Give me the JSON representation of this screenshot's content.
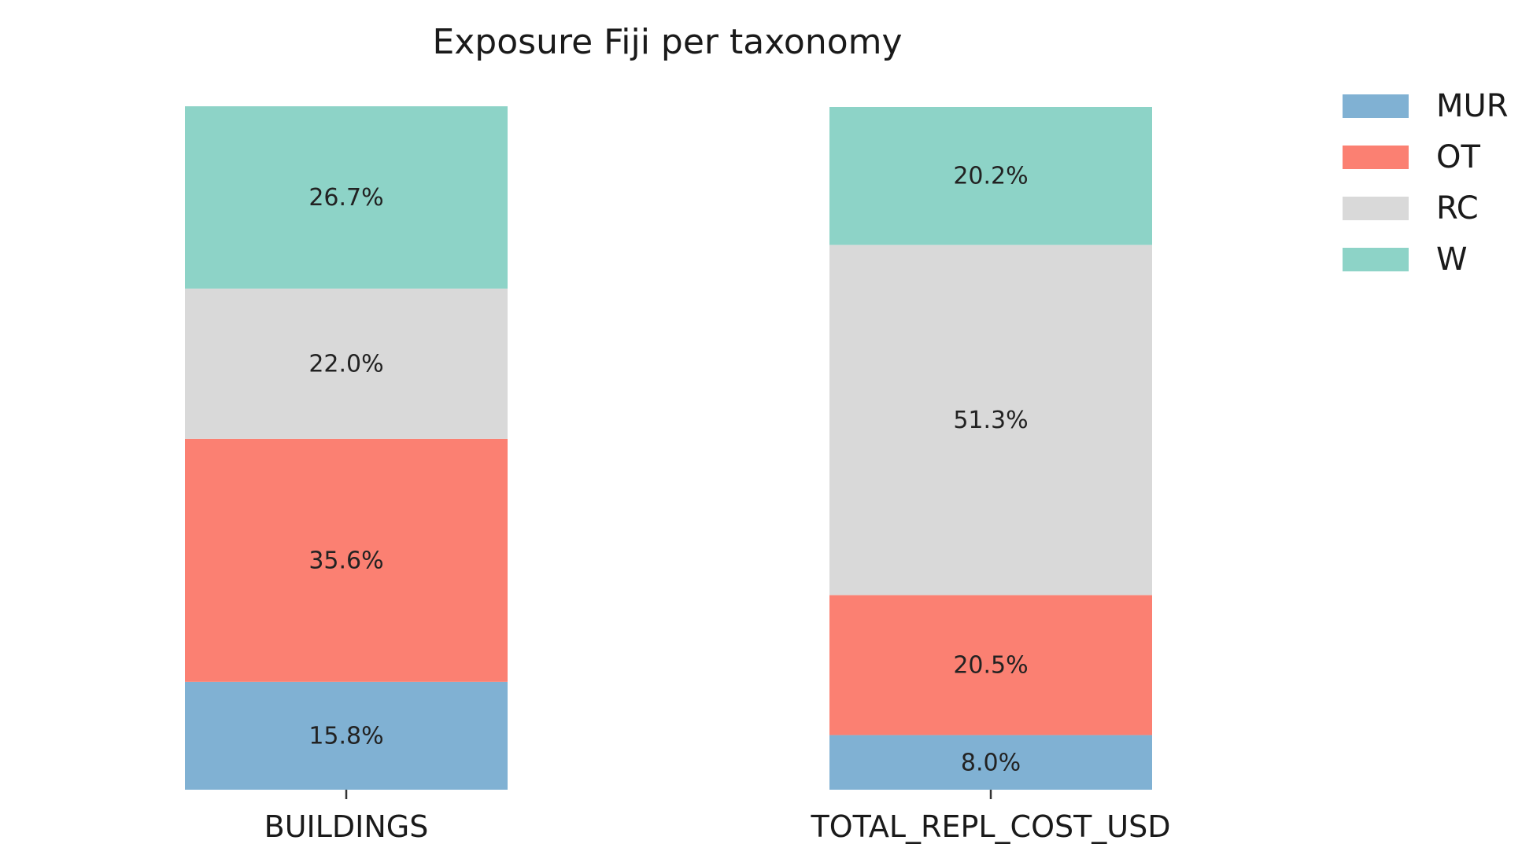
{
  "chart_data": {
    "type": "bar",
    "stacked": true,
    "normalized": true,
    "title": "Exposure Fiji per taxonomy",
    "categories": [
      "BUILDINGS",
      "TOTAL_REPL_COST_USD"
    ],
    "series": [
      {
        "name": "MUR",
        "color": "#80b1d3",
        "values": [
          15.8,
          8.0
        ],
        "labels": [
          "15.8%",
          "8.0%"
        ]
      },
      {
        "name": "OT",
        "color": "#fb8072",
        "values": [
          35.6,
          20.5
        ],
        "labels": [
          "35.6%",
          "20.5%"
        ]
      },
      {
        "name": "RC",
        "color": "#d9d9d9",
        "values": [
          22.0,
          51.3
        ],
        "labels": [
          "22.0%",
          "51.3%"
        ]
      },
      {
        "name": "W",
        "color": "#8dd3c7",
        "values": [
          26.7,
          20.2
        ],
        "labels": [
          "26.7%",
          "20.2%"
        ]
      }
    ],
    "ylim": [
      0,
      100
    ],
    "grid": false,
    "legend": "top-right"
  }
}
